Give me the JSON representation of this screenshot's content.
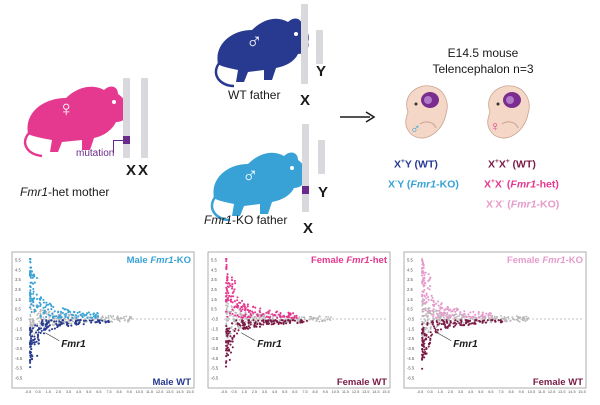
{
  "colors": {
    "mother_pink": "#e5388f",
    "wt_navy": "#273a8f",
    "ko_blue": "#38a2d6",
    "female_ko_pink": "#e59bcb",
    "female_wt_maroon": "#7a1a45",
    "mutation_purple": "#6a2a8c",
    "chromosome_gray": "#d9d9dd"
  },
  "mother": {
    "label_gene": "Fmr1",
    "label_rest": "-het mother",
    "mutation_label": "mutation",
    "chrom_letters": "XX",
    "sex_symbol": "♀"
  },
  "wt_father": {
    "label": "WT father",
    "chrom_y": "Y",
    "chrom_x": "X",
    "sex_symbol": "♂"
  },
  "ko_father": {
    "label_gene": "Fmr1",
    "label_rest": "-KO father",
    "chrom_y": "Y",
    "chrom_x": "X",
    "sex_symbol": "♂"
  },
  "embryo": {
    "line1": "E14.5 mouse",
    "line2": "Telencephalon n=3",
    "male_symbol": "♂",
    "female_symbol": "♀"
  },
  "genotypes": {
    "male_wt": {
      "base": "X",
      "sup": "+",
      "tail": "Y (WT)"
    },
    "male_ko": {
      "base": "X",
      "sup": "-",
      "tail": "Y (",
      "gene": "Fmr1",
      "end": "-KO)"
    },
    "female_wt": {
      "b1": "X",
      "s1": "+",
      "b2": "X",
      "s2": "+",
      "tail": " (WT)"
    },
    "female_het": {
      "b1": "X",
      "s1": "+",
      "b2": "X",
      "s2": "-",
      "tail": " (",
      "gene": "Fmr1",
      "end": "-het)"
    },
    "female_ko": {
      "b1": "X",
      "s1": "-",
      "b2": "X",
      "s2": "-",
      "tail": " (",
      "gene": "Fmr1",
      "end": "-KO)"
    }
  },
  "panels": [
    {
      "top_prefix": "Male ",
      "top_gene": "Fmr1",
      "top_suffix": "-KO",
      "bottom": "Male WT",
      "gene_label": "Fmr1",
      "up_color": "#38a2d6",
      "down_color": "#273a8f"
    },
    {
      "top_prefix": "Female ",
      "top_gene": "Fmr1",
      "top_suffix": "-het",
      "bottom": "Female WT",
      "gene_label": "Fmr1",
      "up_color": "#e5388f",
      "down_color": "#7a1a45"
    },
    {
      "top_prefix": "Female ",
      "top_gene": "Fmr1",
      "top_suffix": "-KO",
      "bottom": "Female WT",
      "gene_label": "Fmr1",
      "up_color": "#e59bcb",
      "down_color": "#7a1a45"
    }
  ],
  "y_ticks": [
    "5.5",
    "4.5",
    "3.5",
    "2.5",
    "1.5",
    "0.5",
    "-0.5",
    "-1.5",
    "-2.5",
    "-3.5",
    "-4.5",
    "-5.5",
    "-6.5"
  ],
  "x_ticks": [
    "-0.5",
    "0.5",
    "1.5",
    "2.5",
    "3.5",
    "4.5",
    "5.5",
    "6.5",
    "7.5",
    "8.5",
    "9.5",
    "10.5",
    "11.5",
    "12.5",
    "13.5",
    "14.5",
    "15.5"
  ]
}
